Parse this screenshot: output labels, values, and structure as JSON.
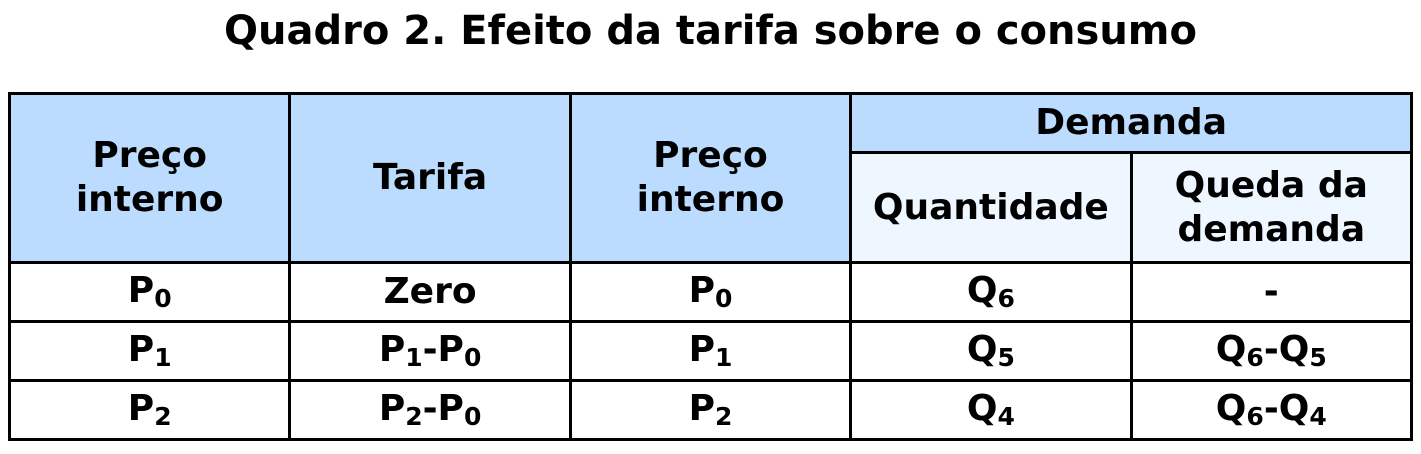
{
  "title": "Quadro 2. Efeito da tarifa sobre o consumo",
  "headers": {
    "col1": "Preço interno",
    "col2": "Tarifa",
    "col3": "Preço interno",
    "group": "Demanda",
    "col4": "Quantidade",
    "col5": "Queda da demanda"
  },
  "colors": {
    "header": "#bbdcfe",
    "subheader": "#eef6ff"
  },
  "rows": [
    [
      [
        {
          "text": "P",
          "sub": "0"
        }
      ],
      [
        {
          "text": "Zero"
        }
      ],
      [
        {
          "text": "P",
          "sub": "0"
        }
      ],
      [
        {
          "text": "Q",
          "sub": "6"
        }
      ],
      [
        {
          "text": "-"
        }
      ]
    ],
    [
      [
        {
          "text": "P",
          "sub": "1"
        }
      ],
      [
        {
          "text": "P",
          "sub": "1"
        },
        {
          "text": "-P",
          "sub": "0"
        }
      ],
      [
        {
          "text": "P",
          "sub": "1"
        }
      ],
      [
        {
          "text": "Q",
          "sub": "5"
        }
      ],
      [
        {
          "text": "Q",
          "sub": "6"
        },
        {
          "text": "-Q",
          "sub": "5"
        }
      ]
    ],
    [
      [
        {
          "text": "P",
          "sub": "2"
        }
      ],
      [
        {
          "text": "P",
          "sub": "2"
        },
        {
          "text": "-P",
          "sub": "0"
        }
      ],
      [
        {
          "text": "P",
          "sub": "2"
        }
      ],
      [
        {
          "text": "Q",
          "sub": "4"
        }
      ],
      [
        {
          "text": "Q",
          "sub": "6"
        },
        {
          "text": "-Q",
          "sub": "4"
        }
      ]
    ]
  ]
}
